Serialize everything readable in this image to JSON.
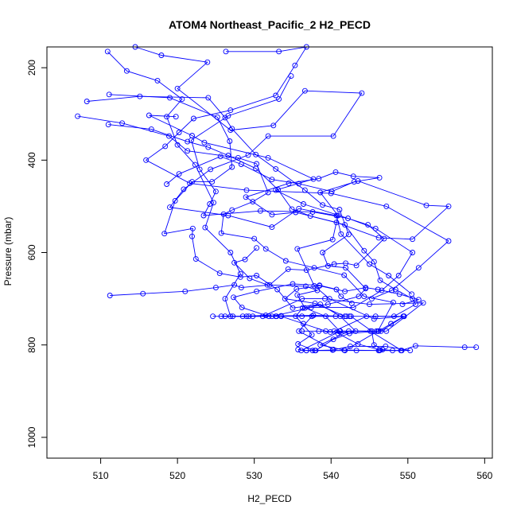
{
  "chart_data": {
    "type": "line",
    "title": "ATOM4 Northeast_Pacific_2 H2_PECD",
    "xlabel": "H2_PECD",
    "ylabel": "Pressure (mbar)",
    "xlim": [
      503,
      561
    ],
    "ylim": [
      1045,
      155
    ],
    "y_reversed": true,
    "xticks": [
      "510",
      "520",
      "530",
      "540",
      "550",
      "560"
    ],
    "yticks": [
      "200",
      "400",
      "600",
      "800",
      "1000"
    ],
    "grid": false,
    "colors": {
      "series": "#0000ff",
      "axis": "#000000",
      "text": "#000000"
    },
    "marker": "open-circle",
    "series": [
      {
        "values": [
          [
            510.9,
            165
          ],
          [
            513.4,
            207
          ],
          [
            517.4,
            228
          ],
          [
            520.6,
            268
          ],
          [
            518.6,
            306
          ],
          [
            520.0,
            367
          ],
          [
            522.3,
            410
          ],
          [
            524.7,
            492
          ],
          [
            523.6,
            546
          ],
          [
            526.9,
            600
          ],
          [
            528.2,
            646
          ],
          [
            526.2,
            700
          ],
          [
            526.9,
            738
          ],
          [
            531.1,
            738
          ],
          [
            536.2,
            700
          ],
          [
            539.2,
            700
          ],
          [
            545.0,
            712
          ],
          [
            552.0,
            709
          ],
          [
            547.2,
            770
          ],
          [
            542.3,
            770
          ],
          [
            538.6,
            800
          ],
          [
            541.7,
            811
          ],
          [
            546.3,
            812
          ],
          [
            549.1,
            812
          ],
          [
            551.0,
            802
          ],
          [
            557.4,
            805
          ],
          [
            558.9,
            805
          ]
        ]
      },
      {
        "values": [
          [
            511.0,
            323
          ],
          [
            516.6,
            333
          ],
          [
            521.3,
            360
          ],
          [
            524.0,
            372
          ],
          [
            526.6,
            390
          ],
          [
            530.2,
            418
          ],
          [
            533.1,
            464
          ],
          [
            534.9,
            506
          ],
          [
            537.3,
            521
          ],
          [
            541.8,
            540
          ],
          [
            544.3,
            596
          ],
          [
            545.6,
            620
          ],
          [
            546.4,
            660
          ],
          [
            548.4,
            680
          ],
          [
            550.6,
            700
          ],
          [
            551.0,
            712
          ],
          [
            548.2,
            738
          ],
          [
            544.6,
            738
          ],
          [
            540.4,
            770
          ],
          [
            540.9,
            775
          ],
          [
            543.5,
            798
          ],
          [
            546.4,
            811
          ]
        ]
      },
      {
        "values": [
          [
            507.0,
            305
          ],
          [
            512.8,
            320
          ],
          [
            518.9,
            348
          ],
          [
            521.3,
            380
          ],
          [
            527.9,
            395
          ],
          [
            530.3,
            408
          ],
          [
            531.8,
            470
          ],
          [
            529.8,
            490
          ],
          [
            527.1,
            508
          ],
          [
            526.0,
            517
          ],
          [
            525.7,
            558
          ],
          [
            530.0,
            570
          ],
          [
            531.5,
            592
          ],
          [
            534.1,
            618
          ],
          [
            537.8,
            633
          ],
          [
            541.7,
            649
          ],
          [
            544.3,
            695
          ],
          [
            548.1,
            708
          ],
          [
            546.1,
            770
          ],
          [
            541.8,
            812
          ],
          [
            536.8,
            812
          ]
        ]
      },
      {
        "values": [
          [
            508.2,
            273
          ],
          [
            515.1,
            262
          ],
          [
            524.0,
            265
          ],
          [
            526.2,
            308
          ],
          [
            527.1,
            332
          ],
          [
            530.2,
            388
          ],
          [
            532.8,
            419
          ],
          [
            536.6,
            465
          ],
          [
            538.9,
            497
          ],
          [
            541.1,
            507
          ],
          [
            542.3,
            561
          ],
          [
            538.9,
            600
          ],
          [
            539.6,
            629
          ],
          [
            541.9,
            633
          ],
          [
            544.5,
            678
          ],
          [
            543.6,
            695
          ],
          [
            539.6,
            712
          ],
          [
            536.3,
            720
          ],
          [
            535.4,
            738
          ],
          [
            537.5,
            778
          ],
          [
            535.7,
            798
          ],
          [
            537.9,
            812
          ]
        ]
      },
      {
        "values": [
          [
            511.1,
            258
          ],
          [
            519.0,
            265
          ],
          [
            525.2,
            307
          ],
          [
            526.8,
            359
          ],
          [
            527.1,
            415
          ],
          [
            524.5,
            447
          ],
          [
            521.9,
            447
          ],
          [
            519.7,
            488
          ],
          [
            518.3,
            559
          ],
          [
            522.0,
            548
          ],
          [
            521.9,
            565
          ],
          [
            522.4,
            614
          ],
          [
            525.5,
            645
          ],
          [
            528.2,
            653
          ],
          [
            530.3,
            650
          ],
          [
            533.0,
            680
          ],
          [
            535.0,
            720
          ],
          [
            538.6,
            712
          ],
          [
            541.2,
            738
          ],
          [
            543.2,
            770
          ],
          [
            540.3,
            788
          ],
          [
            538.0,
            812
          ]
        ]
      },
      {
        "values": [
          [
            511.2,
            693
          ],
          [
            515.5,
            689
          ],
          [
            521.0,
            684
          ],
          [
            525.0,
            676
          ],
          [
            527.4,
            670
          ],
          [
            528.3,
            676
          ],
          [
            532.0,
            670
          ],
          [
            534.4,
            636
          ],
          [
            536.8,
            638
          ],
          [
            540.4,
            625
          ],
          [
            541.9,
            623
          ],
          [
            543.3,
            628
          ],
          [
            546.9,
            570
          ],
          [
            544.8,
            540
          ],
          [
            536.4,
            495
          ],
          [
            532.8,
            465
          ],
          [
            537.7,
            441
          ],
          [
            531.8,
            395
          ],
          [
            523.5,
            362
          ],
          [
            521.9,
            347
          ],
          [
            516.3,
            303
          ],
          [
            519.8,
            306
          ]
        ]
      },
      {
        "values": [
          [
            518.6,
            452
          ],
          [
            520.2,
            430
          ],
          [
            525.6,
            392
          ],
          [
            528.3,
            409
          ],
          [
            532.3,
            442
          ],
          [
            535.8,
            451
          ],
          [
            540.1,
            468
          ],
          [
            543.0,
            447
          ],
          [
            546.3,
            438
          ],
          [
            542.9,
            435
          ],
          [
            540.6,
            426
          ],
          [
            538.4,
            440
          ],
          [
            534.5,
            450
          ],
          [
            528.9,
            480
          ],
          [
            532.3,
            518
          ],
          [
            535.4,
            513
          ],
          [
            540.7,
            535
          ],
          [
            546.2,
            568
          ],
          [
            550.6,
            571
          ],
          [
            555.3,
            500
          ],
          [
            552.4,
            498
          ],
          [
            543.5,
            445
          ],
          [
            538.6,
            470
          ],
          [
            540.9,
            520
          ],
          [
            540.2,
            572
          ],
          [
            535.6,
            592
          ],
          [
            537.8,
            672
          ],
          [
            539.8,
            700
          ],
          [
            545.6,
            744
          ],
          [
            549.4,
            738
          ]
        ]
      },
      {
        "values": [
          [
            529.8,
            738
          ],
          [
            533.5,
            737
          ],
          [
            537.7,
            736
          ],
          [
            542.0,
            738
          ],
          [
            545.8,
            738
          ],
          [
            549.5,
            738
          ],
          [
            547.8,
            754
          ],
          [
            546.2,
            770
          ],
          [
            542.4,
            775
          ],
          [
            539.3,
            770
          ],
          [
            536.4,
            754
          ],
          [
            533.5,
            738
          ],
          [
            529.3,
            738
          ],
          [
            527.2,
            738
          ],
          [
            524.6,
            738
          ]
        ]
      },
      {
        "values": [
          [
            531.9,
            738
          ],
          [
            528.4,
            719
          ],
          [
            527.3,
            697
          ],
          [
            530.3,
            684
          ],
          [
            535.0,
            668
          ],
          [
            538.5,
            671
          ],
          [
            541.8,
            684
          ],
          [
            544.5,
            676
          ],
          [
            546.1,
            680
          ],
          [
            548.9,
            690
          ],
          [
            551.4,
            702
          ],
          [
            549.3,
            712
          ]
        ]
      },
      {
        "values": [
          [
            526.3,
            165
          ],
          [
            533.2,
            165
          ],
          [
            536.8,
            155
          ],
          [
            535.3,
            195
          ],
          [
            532.8,
            260
          ],
          [
            526.9,
            292
          ],
          [
            522.1,
            310
          ],
          [
            520.2,
            340
          ],
          [
            518.4,
            370
          ],
          [
            515.9,
            400
          ],
          [
            521.6,
            450
          ],
          [
            529.0,
            465
          ],
          [
            540.0,
            472
          ],
          [
            547.2,
            500
          ],
          [
            555.3,
            575
          ],
          [
            551.4,
            633
          ],
          [
            547.9,
            682
          ],
          [
            545.3,
            700
          ]
        ]
      },
      {
        "values": [
          [
            514.5,
            155
          ],
          [
            517.9,
            173
          ],
          [
            523.9,
            188
          ],
          [
            520.0,
            245
          ],
          [
            526.9,
            335
          ],
          [
            532.5,
            325
          ],
          [
            536.6,
            250
          ],
          [
            544.0,
            255
          ],
          [
            540.3,
            348
          ],
          [
            531.8,
            348
          ],
          [
            529.2,
            389
          ],
          [
            524.3,
            420
          ],
          [
            520.8,
            463
          ],
          [
            519.0,
            502
          ],
          [
            526.6,
            520
          ],
          [
            532.3,
            545
          ],
          [
            535.8,
            505
          ],
          [
            540.7,
            520
          ],
          [
            541.3,
            560
          ],
          [
            545.0,
            625
          ],
          [
            547.5,
            650
          ],
          [
            550.5,
            690
          ]
        ]
      },
      {
        "values": [
          [
            534.8,
            218
          ],
          [
            533.2,
            268
          ],
          [
            526.6,
            304
          ],
          [
            521.8,
            357
          ],
          [
            522.9,
            420
          ],
          [
            525.0,
            468
          ],
          [
            524.2,
            495
          ],
          [
            523.4,
            520
          ],
          [
            530.8,
            510
          ],
          [
            537.6,
            512
          ],
          [
            542.2,
            526
          ],
          [
            545.8,
            548
          ],
          [
            550.6,
            600
          ],
          [
            548.8,
            650
          ],
          [
            546.6,
            682
          ],
          [
            542.9,
            719
          ],
          [
            537.4,
            719
          ],
          [
            532.3,
            738
          ]
        ]
      },
      {
        "values": [
          [
            530.3,
            590
          ],
          [
            528.8,
            615
          ],
          [
            527.4,
            622
          ],
          [
            529.4,
            656
          ],
          [
            531.7,
            670
          ],
          [
            536.7,
            673
          ],
          [
            538.2,
            682
          ],
          [
            535.6,
            692
          ],
          [
            536.6,
            720
          ],
          [
            539.3,
            738
          ],
          [
            541.1,
            770
          ],
          [
            545.9,
            770
          ]
        ]
      },
      {
        "values": [
          [
            542.6,
            738
          ],
          [
            545.3,
            770
          ],
          [
            545.6,
            800
          ],
          [
            546.7,
            810
          ],
          [
            548.0,
            812
          ],
          [
            550.3,
            812
          ],
          [
            547.1,
            803
          ],
          [
            542.5,
            803
          ],
          [
            540.2,
            811
          ],
          [
            537.6,
            812
          ],
          [
            536.1,
            812
          ],
          [
            541.2,
            770
          ],
          [
            546.5,
            770
          ],
          [
            549.5,
            738
          ]
        ]
      },
      {
        "values": [
          [
            542.7,
            710
          ],
          [
            541.3,
            695
          ],
          [
            540.7,
            680
          ],
          [
            538.5,
            672
          ],
          [
            535.5,
            679
          ],
          [
            534.0,
            700
          ],
          [
            537.9,
            710
          ],
          [
            541.8,
            738
          ],
          [
            537.5,
            738
          ],
          [
            535.8,
            770
          ],
          [
            540.3,
            810
          ]
        ]
      },
      {
        "values": [
          [
            536.2,
            770
          ],
          [
            538.4,
            770
          ],
          [
            539.9,
            772
          ],
          [
            545.1,
            770
          ],
          [
            549.2,
            812
          ],
          [
            546.2,
            812
          ],
          [
            543.3,
            812
          ],
          [
            536.8,
            812
          ],
          [
            535.7,
            810
          ]
        ]
      },
      {
        "values": [
          [
            542.4,
            738
          ],
          [
            540.6,
            738
          ],
          [
            536.2,
            738
          ],
          [
            532.8,
            738
          ],
          [
            529.0,
            738
          ],
          [
            526.2,
            738
          ]
        ]
      },
      {
        "values": [
          [
            532.9,
            738
          ],
          [
            531.5,
            736
          ],
          [
            528.5,
            738
          ],
          [
            525.7,
            738
          ]
        ]
      }
    ]
  }
}
